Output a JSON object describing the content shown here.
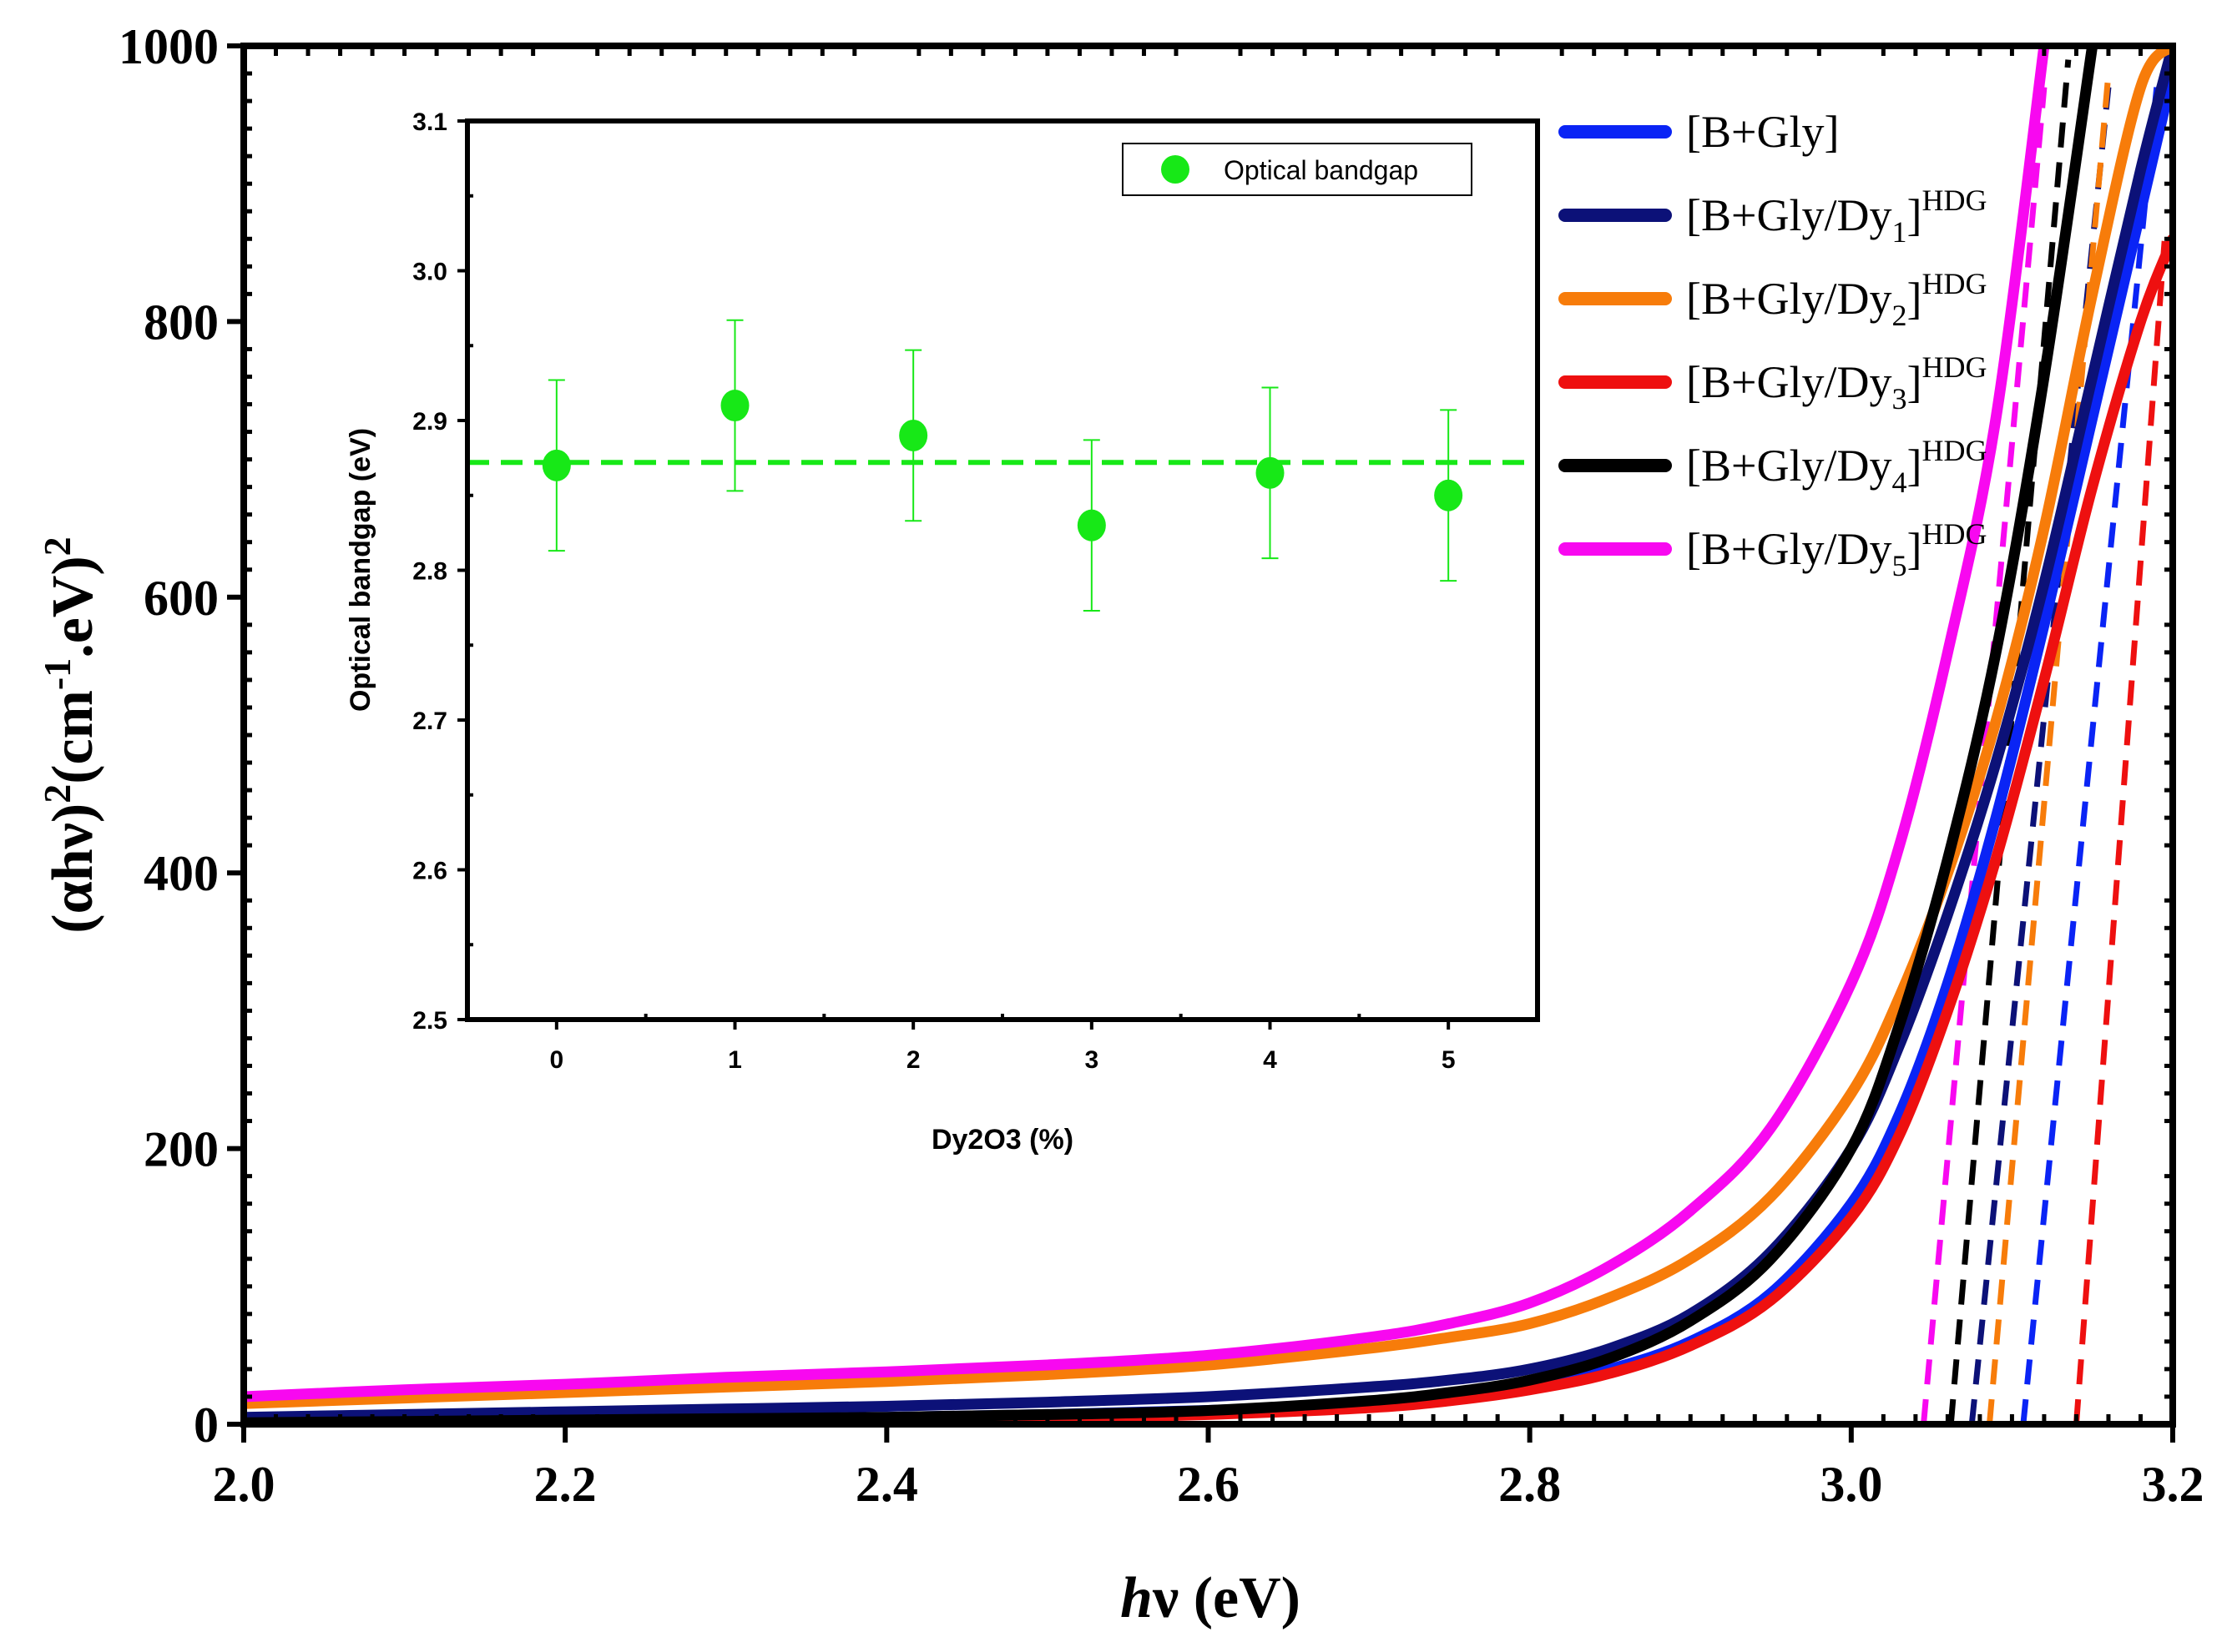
{
  "chart_data": {
    "type": "line",
    "title": "",
    "xlabel": {
      "italic": "h",
      "rest": "ν (eV)"
    },
    "ylabel": {
      "p1": "(αhν)",
      "sup1": "2",
      "p2": "(cm",
      "sup2": "-1",
      "p3": ".eV)",
      "sup3": "2"
    },
    "xlim": [
      2.0,
      3.2
    ],
    "ylim": [
      0,
      1000
    ],
    "xticks": [
      "2.0",
      "2.2",
      "2.4",
      "2.6",
      "2.8",
      "3.0",
      "3.2"
    ],
    "yticks": [
      "0",
      "200",
      "400",
      "600",
      "800",
      "1000"
    ],
    "x": [
      2.0,
      2.1,
      2.2,
      2.3,
      2.4,
      2.5,
      2.6,
      2.7,
      2.75,
      2.8,
      2.85,
      2.9,
      2.95,
      3.0,
      3.03,
      3.06,
      3.09,
      3.12,
      3.15,
      3.18,
      3.2
    ],
    "series": [
      {
        "name": "[B+Gly]",
        "base": "[B+Gly",
        "sub": "",
        "sup": "",
        "color": "#0a24f5",
        "values": [
          1,
          2,
          3,
          4,
          5,
          7,
          10,
          15,
          20,
          28,
          40,
          60,
          95,
          160,
          225,
          320,
          440,
          580,
          730,
          880,
          980
        ],
        "tangent": {
          "x0": 3.107,
          "x1": 3.19,
          "y1": 970
        }
      },
      {
        "name": "[B+Gly/Dy1]HDG",
        "base": "[B+Gly/Dy",
        "sub": "1",
        "sup": "HDG",
        "color": "#0c1178",
        "values": [
          5,
          7,
          9,
          11,
          13,
          16,
          20,
          27,
          32,
          40,
          55,
          80,
          125,
          200,
          275,
          370,
          480,
          610,
          760,
          910,
          1000
        ],
        "tangent": {
          "x0": 3.075,
          "x1": 3.16,
          "y1": 970
        }
      },
      {
        "name": "[B+Gly/Dy2]HDG",
        "base": "[B+Gly/Dy",
        "sub": "2",
        "sup": "HDG",
        "color": "#f77c0a",
        "values": [
          15,
          19,
          23,
          27,
          31,
          36,
          43,
          55,
          63,
          73,
          92,
          120,
          165,
          240,
          310,
          400,
          510,
          650,
          820,
          970,
          1000
        ],
        "tangent": {
          "x0": 3.086,
          "x1": 3.16,
          "y1": 980
        }
      },
      {
        "name": "[B+Gly/Dy3]HDG",
        "base": "[B+Gly/Dy",
        "sub": "3",
        "sup": "HDG",
        "color": "#ee1010",
        "values": [
          0,
          1,
          1,
          2,
          3,
          4,
          7,
          12,
          17,
          25,
          37,
          57,
          90,
          150,
          210,
          300,
          410,
          540,
          680,
          800,
          860
        ],
        "tangent": {
          "x0": 3.14,
          "x1": 3.195,
          "y1": 860
        }
      },
      {
        "name": "[B+Gly/Dy4]HDG",
        "base": "[B+Gly/Dy",
        "sub": "4",
        "sup": "HDG",
        "color": "#000000",
        "values": [
          1,
          2,
          3,
          4,
          5,
          7,
          10,
          17,
          23,
          32,
          48,
          75,
          120,
          200,
          290,
          410,
          560,
          760,
          1000,
          1000,
          1000
        ],
        "tangent": {
          "x0": 3.062,
          "x1": 3.135,
          "y1": 990
        }
      },
      {
        "name": "[B+Gly/Dy5]HDG",
        "base": "[B+Gly/Dy",
        "sub": "5",
        "sup": "HDG",
        "color": "#f808f0",
        "values": [
          20,
          25,
          29,
          34,
          38,
          43,
          50,
          63,
          73,
          88,
          115,
          155,
          215,
          320,
          420,
          560,
          730,
          1000,
          1000,
          1000,
          1000
        ],
        "tangent": {
          "x0": 3.045,
          "x1": 3.12,
          "y1": 970
        }
      }
    ],
    "inset": {
      "type": "scatter",
      "xlabel": "Dy2O3 (%)",
      "ylabel": "Optical bandgap (eV)",
      "xlim": [
        -0.5,
        5.5
      ],
      "ylim": [
        2.5,
        3.1
      ],
      "xticks": [
        "0",
        "1",
        "2",
        "3",
        "4",
        "5"
      ],
      "yticks": [
        "2.5",
        "2.6",
        "2.7",
        "2.8",
        "2.9",
        "3.0",
        "3.1"
      ],
      "legend": "Optical bandgap",
      "color": "#17e817",
      "x": [
        0,
        1,
        2,
        3,
        4,
        5
      ],
      "y": [
        2.87,
        2.91,
        2.89,
        2.83,
        2.865,
        2.85
      ],
      "yerr": [
        0.057,
        0.057,
        0.057,
        0.057,
        0.057,
        0.057
      ],
      "mean_line": 2.872
    }
  }
}
